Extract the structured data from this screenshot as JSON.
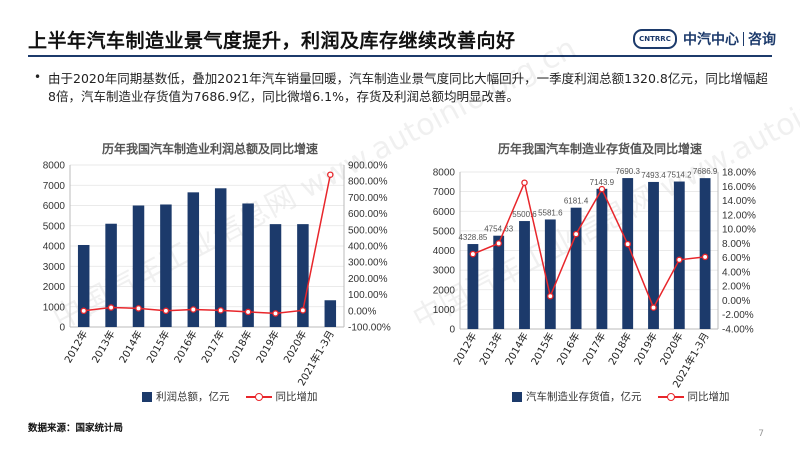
{
  "header": {
    "title": "上半年汽车制造业景气度提升，利润及库存继续改善向好",
    "logo_badge": "CNTRRC",
    "logo_text": "中汽中心",
    "logo_text2": "咨询"
  },
  "bullet": {
    "dot": "•",
    "text": "由于2020年同期基数低，叠加2021年汽车销量回暖，汽车制造业景气度同比大幅回升，一季度利润总额1320.8亿元，同比增幅超8倍，汽车制造业存货值为7686.9亿，同比微增6.1%，存货及利润总额均明显改善。"
  },
  "source": "数据来源：国家统计局",
  "page_number": "7",
  "watermark": "中国汽车工业信息网 www.autoinfo.org.cn",
  "colors": {
    "bar": "#1c3a6b",
    "line": "#e8262b",
    "accent": "#1c3a6b"
  },
  "chart_data": [
    {
      "type": "bar",
      "title": "历年我国汽车制造业利润总额及同比增速",
      "categories": [
        "2012年",
        "2013年",
        "2014年",
        "2015年",
        "2016年",
        "2017年",
        "2018年",
        "2019年",
        "2020年",
        "2021年1-3月"
      ],
      "series": [
        {
          "name": "利润总额，亿元",
          "type": "bar",
          "axis": "left",
          "values": [
            4050,
            5100,
            6000,
            6050,
            6650,
            6850,
            6100,
            5080,
            5080,
            1320.8
          ]
        },
        {
          "name": "同比增加",
          "type": "line",
          "axis": "right",
          "values": [
            0.0,
            20.0,
            15.0,
            0.0,
            8.0,
            3.0,
            -7.0,
            -16.0,
            3.0,
            840.0
          ]
        }
      ],
      "ylim_left": [
        0,
        8000
      ],
      "yticks_left": [
        "0",
        "1000",
        "2000",
        "3000",
        "4000",
        "5000",
        "6000",
        "7000",
        "8000"
      ],
      "ylim_right": [
        -100,
        900
      ],
      "yticks_right": [
        "-100.00%",
        "0.00%",
        "100.00%",
        "200.00%",
        "300.00%",
        "400.00%",
        "500.00%",
        "600.00%",
        "700.00%",
        "800.00%",
        "900.00%"
      ],
      "legend_position": "bottom",
      "grid": true
    },
    {
      "type": "bar",
      "title": "历年我国汽车制造业存货值及同比增速",
      "categories": [
        "2012年",
        "2013年",
        "2014年",
        "2015年",
        "2016年",
        "2017年",
        "2018年",
        "2019年",
        "2020年",
        "2021年1-3月"
      ],
      "series": [
        {
          "name": "汽车制造业存货值，亿元",
          "type": "bar",
          "axis": "left",
          "values": [
            4328.85,
            4754.63,
            5500.6,
            5581.6,
            6181.4,
            7143.9,
            7690.3,
            7493.4,
            7514.2,
            7686.9
          ]
        },
        {
          "name": "同比增加",
          "type": "line",
          "axis": "right",
          "values": [
            6.5,
            8.0,
            16.5,
            0.6,
            9.3,
            15.6,
            7.9,
            -1.0,
            5.7,
            6.1
          ]
        }
      ],
      "data_labels": [
        "4328.85",
        "4754.63",
        "5500.6",
        "5581.6",
        "6181.4",
        "7143.9",
        "7690.3",
        "7493.4",
        "7514.2",
        "7686.9"
      ],
      "ylim_left": [
        0,
        8000
      ],
      "yticks_left": [
        "0",
        "1000",
        "2000",
        "3000",
        "4000",
        "5000",
        "6000",
        "7000",
        "8000"
      ],
      "ylim_right": [
        -4,
        18
      ],
      "yticks_right": [
        "-4.00%",
        "-2.00%",
        "0.00%",
        "2.00%",
        "4.00%",
        "6.00%",
        "8.00%",
        "10.00%",
        "12.00%",
        "14.00%",
        "16.00%",
        "18.00%"
      ],
      "legend_position": "bottom",
      "grid": true
    }
  ]
}
